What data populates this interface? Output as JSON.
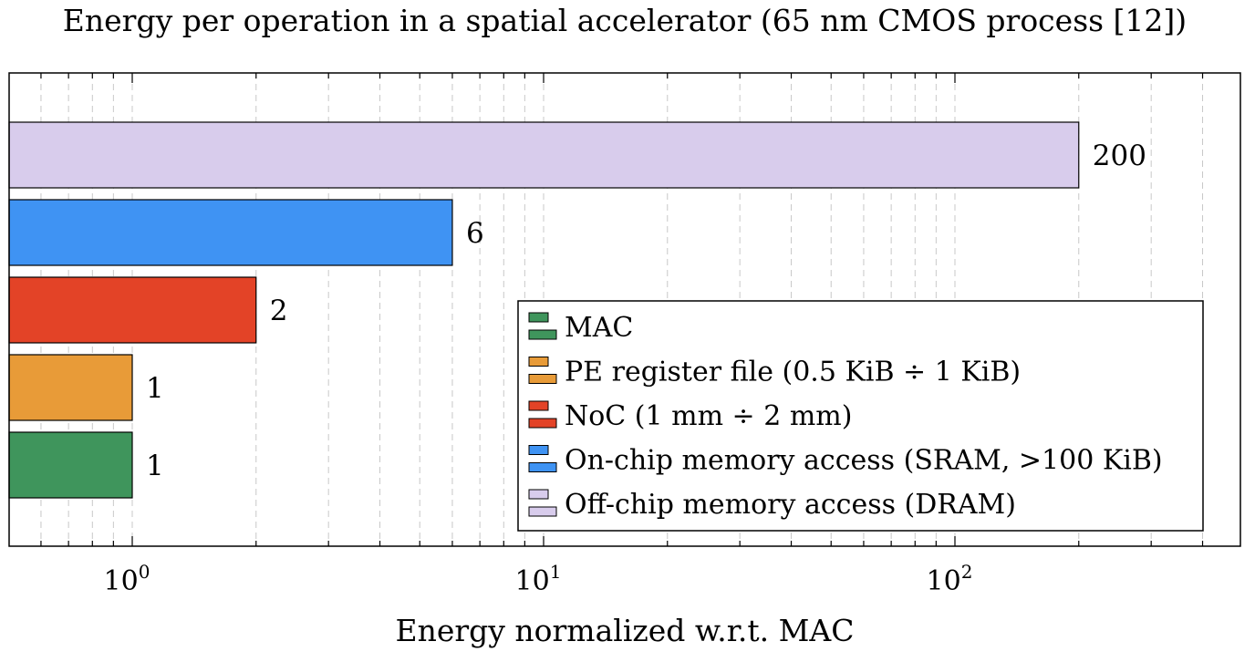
{
  "chart_data": {
    "type": "bar",
    "orientation": "horizontal",
    "title": "Energy per operation in a spatial accelerator (65 nm CMOS process [12])",
    "xlabel": "Energy normalized w.r.t. MAC",
    "ylabel": "",
    "xscale": "log",
    "xlim": [
      0.55,
      450
    ],
    "grid": "x-major-and-minor-dashed",
    "legend_position": "bottom-right",
    "x_ticks": [
      {
        "value": 1,
        "base": "10",
        "exp": "0"
      },
      {
        "value": 10,
        "base": "10",
        "exp": "1"
      },
      {
        "value": 100,
        "base": "10",
        "exp": "2"
      }
    ],
    "bars": [
      {
        "name": "MAC",
        "value": 1,
        "label": "1",
        "color": "#3f955c"
      },
      {
        "name": "PE register file (0.5 KiB ÷ 1 KiB)",
        "value": 1,
        "label": "1",
        "color": "#e89b38"
      },
      {
        "name": "NoC (1 mm ÷ 2 mm)",
        "value": 2,
        "label": "2",
        "color": "#e34327"
      },
      {
        "name": "On-chip memory access (SRAM, >100 KiB)",
        "value": 6,
        "label": "6",
        "color": "#3f93f3"
      },
      {
        "name": "Off-chip memory access (DRAM)",
        "value": 200,
        "label": "200",
        "color": "#d8ccec"
      }
    ]
  }
}
